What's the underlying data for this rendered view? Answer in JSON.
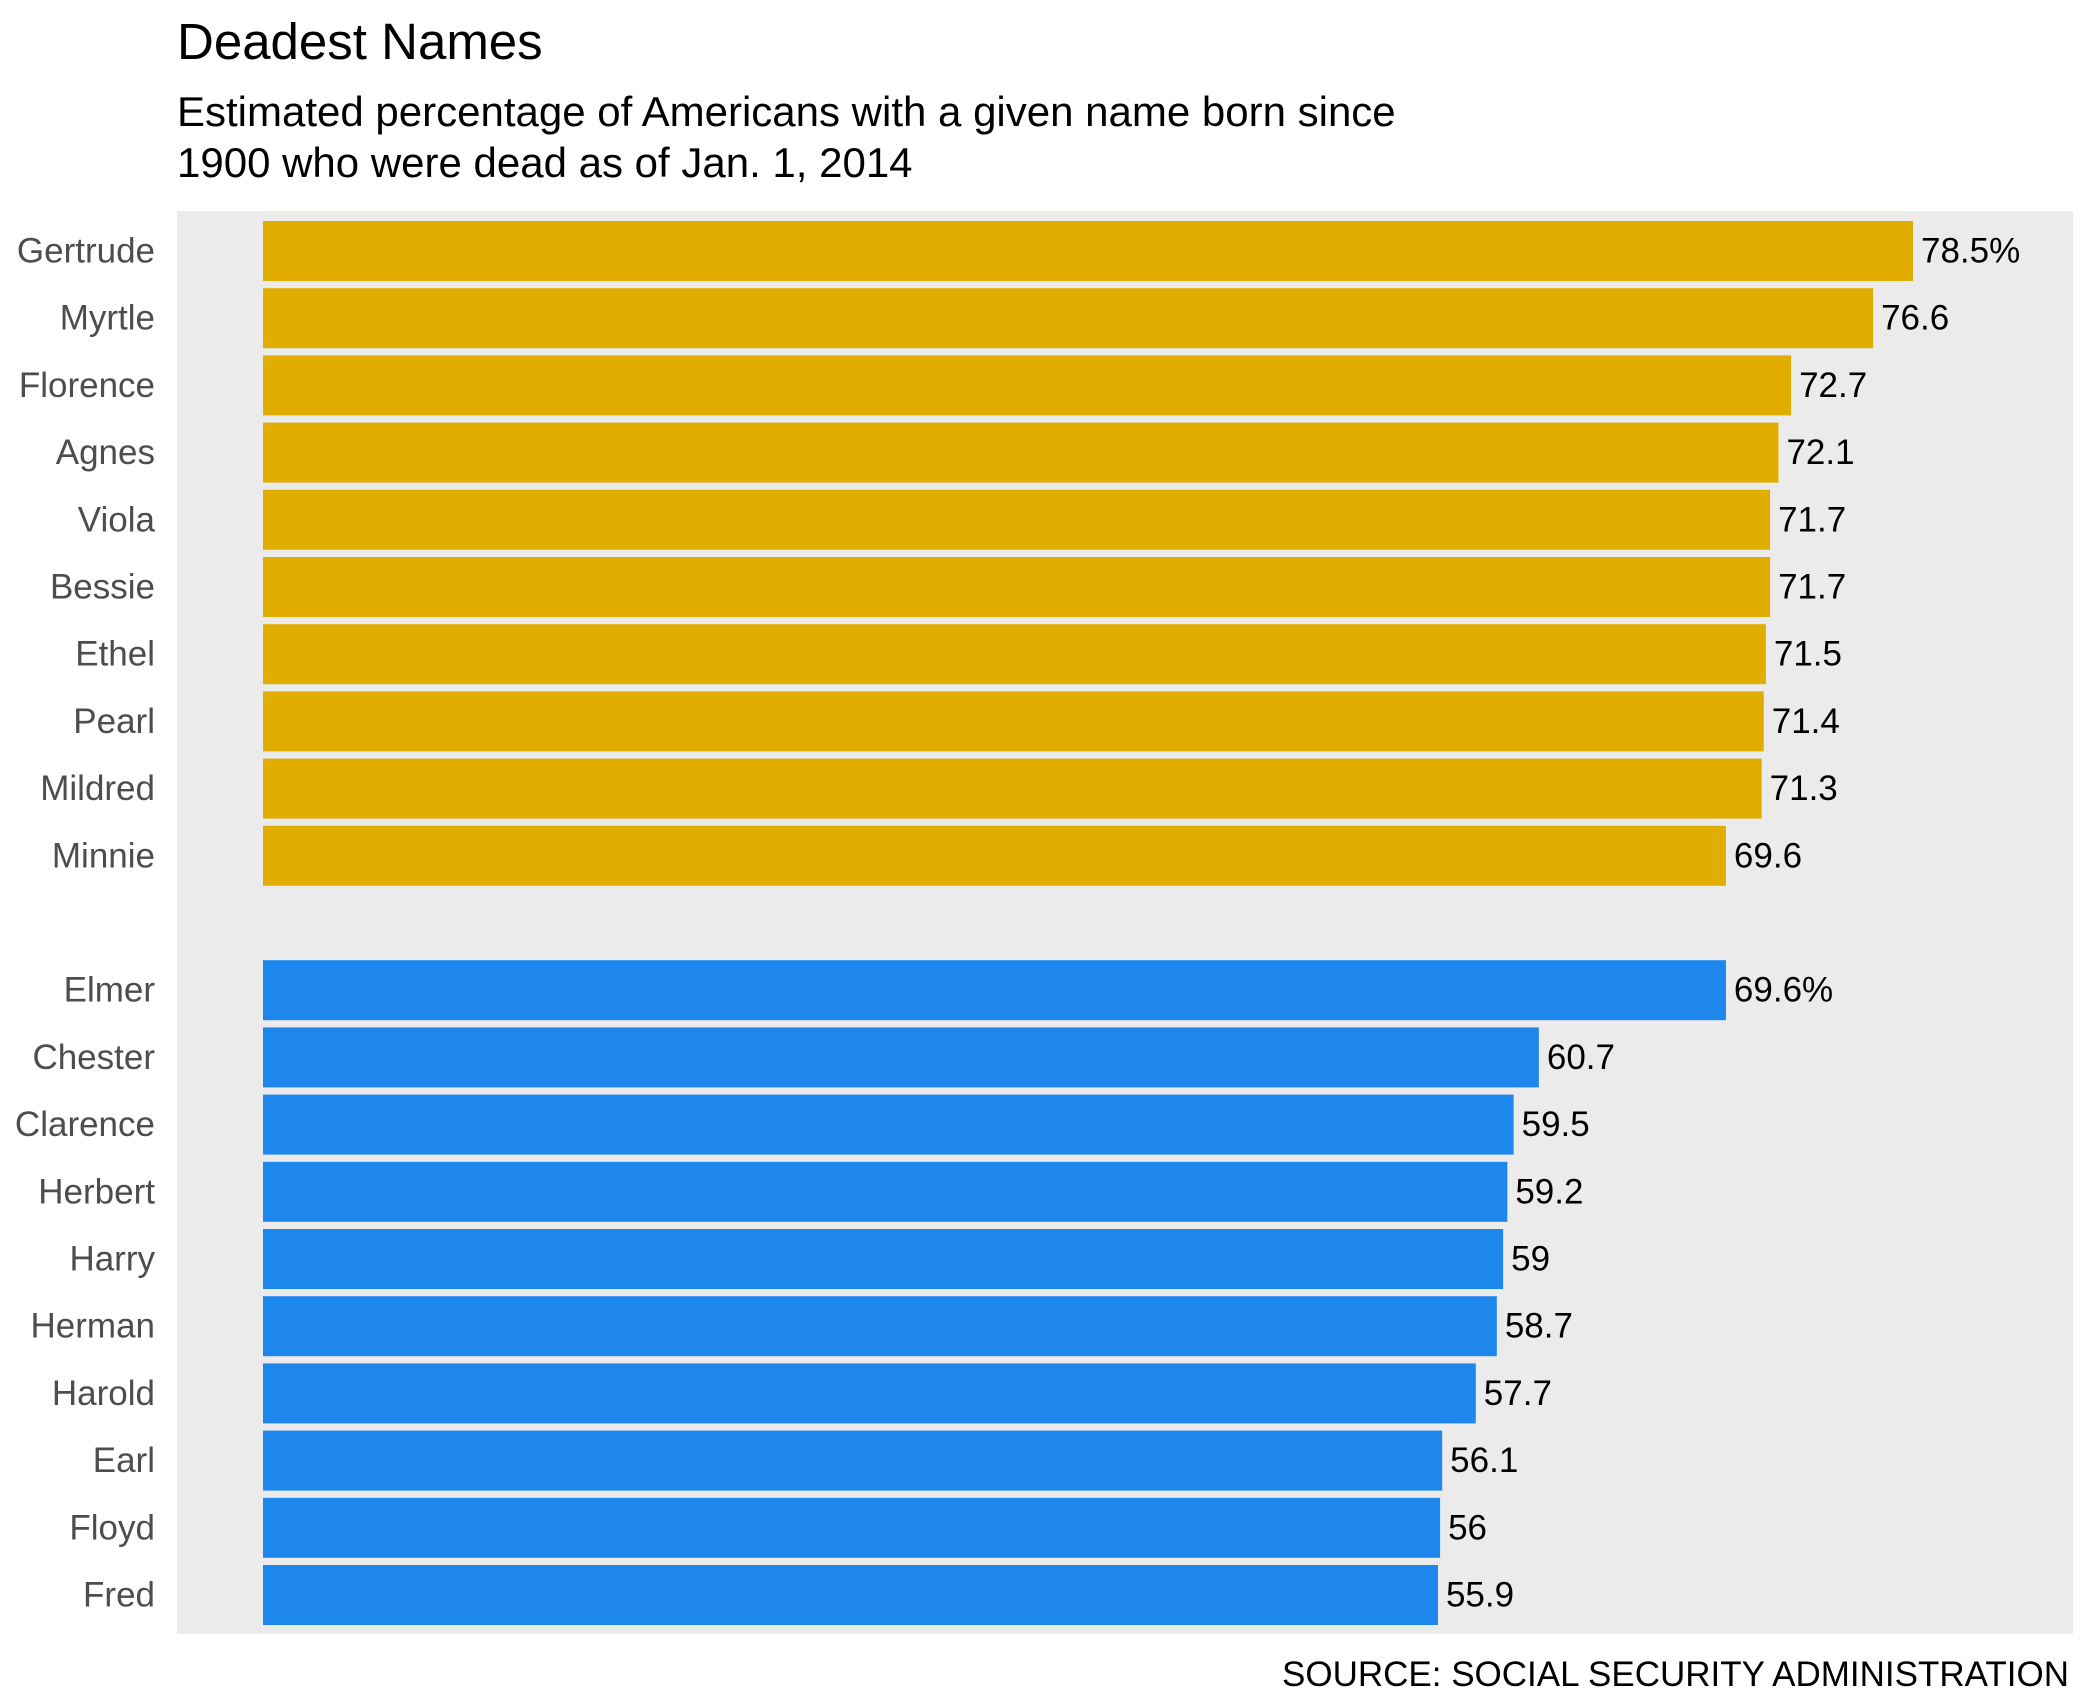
{
  "colors": {
    "panel_bg": "#ebebeb",
    "female_bar": "#e1ad01",
    "male_bar": "#1e87ee",
    "category_label": "#4d4d4d",
    "value_label": "#000000"
  },
  "chart_data": {
    "type": "bar",
    "orientation": "horizontal",
    "title": "Deadest Names",
    "subtitle_lines": [
      "Estimated percentage of Americans with a given name born since",
      "1900 who were dead as of Jan. 1, 2014"
    ],
    "source": "SOURCE: SOCIAL SECURITY ADMINISTRATION",
    "xlabel": "",
    "ylabel": "",
    "grid": false,
    "unit": "%",
    "series": [
      {
        "color": "#e1ad01",
        "categories": [
          "Gertrude",
          "Myrtle",
          "Florence",
          "Agnes",
          "Viola",
          "Bessie",
          "Ethel",
          "Pearl",
          "Mildred",
          "Minnie"
        ],
        "values": [
          78.5,
          76.6,
          72.7,
          72.1,
          71.7,
          71.7,
          71.5,
          71.4,
          71.3,
          69.6
        ],
        "value_labels": [
          "78.5%",
          "76.6",
          "72.7",
          "72.1",
          "71.7",
          "71.7",
          "71.5",
          "71.4",
          "71.3",
          "69.6"
        ]
      },
      {
        "color": "#1e87ee",
        "categories": [
          "Elmer",
          "Chester",
          "Clarence",
          "Herbert",
          "Harry",
          "Herman",
          "Harold",
          "Earl",
          "Floyd",
          "Fred"
        ],
        "values": [
          69.6,
          60.7,
          59.5,
          59.2,
          59,
          58.7,
          57.7,
          56.1,
          56,
          55.9
        ],
        "value_labels": [
          "69.6%",
          "60.7",
          "59.5",
          "59.2",
          "59",
          "58.7",
          "57.7",
          "56.1",
          "56",
          "55.9"
        ]
      }
    ]
  }
}
